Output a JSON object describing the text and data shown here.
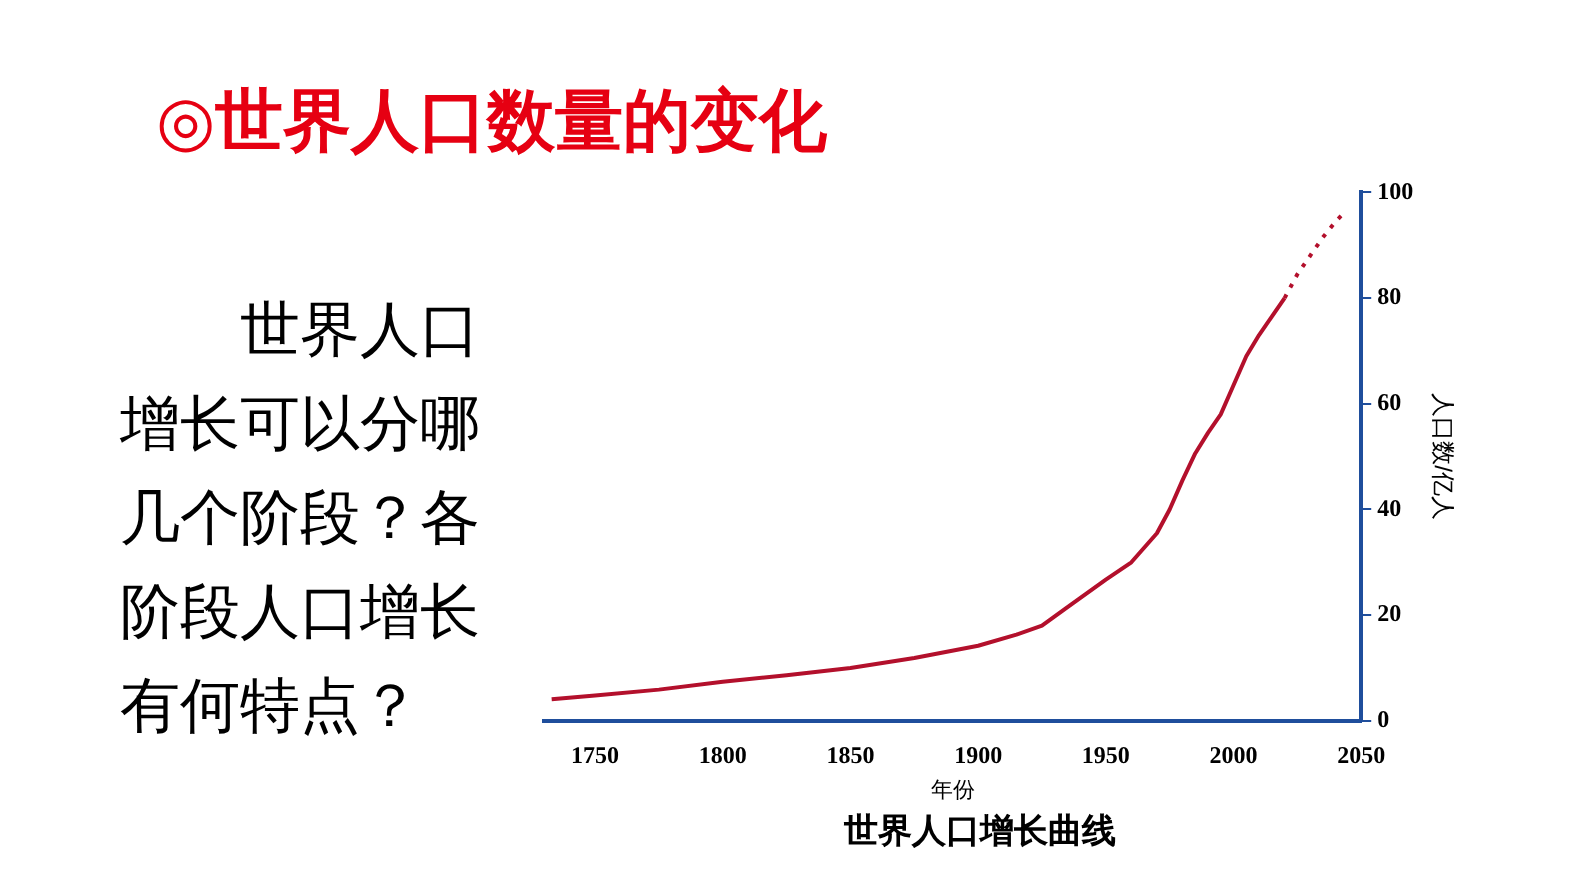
{
  "chart_data": {
    "type": "line",
    "title": "世界人口增长曲线",
    "xlabel": "年份",
    "ylabel": "人口数/亿人",
    "annotations": [
      "◎世界人口数量的变化",
      "世界人口增长可以分哪几个阶段？各阶段人口增长有何特点？"
    ],
    "series": [
      {
        "color": "#b3102c",
        "line_style": "solid",
        "x": [
          1733,
          1750,
          1775,
          1800,
          1825,
          1850,
          1875,
          1900,
          1915,
          1925,
          1935,
          1950,
          1960,
          1970,
          1975,
          1980,
          1985,
          1990,
          1995,
          2000,
          2005,
          2010,
          2015,
          2020
        ],
        "values": [
          4.1,
          4.8,
          5.9,
          7.4,
          8.6,
          10,
          11.9,
          14.2,
          16.3,
          18,
          21.5,
          26.7,
          30,
          35.5,
          40,
          45.5,
          50.6,
          54.5,
          58,
          63.5,
          69,
          73,
          76.5,
          80
        ]
      },
      {
        "color": "#b3102c",
        "line_style": "dotted",
        "x": [
          2020,
          2025,
          2030,
          2035,
          2040,
          2043
        ],
        "values": [
          80,
          84.5,
          88,
          91.5,
          94.5,
          96
        ]
      }
    ],
    "xlim": [
      1730,
      2050
    ],
    "xticks": [
      1750,
      1800,
      1850,
      1900,
      1950,
      2000,
      2050
    ],
    "ylim": [
      0,
      100
    ],
    "yticks": [
      0,
      20,
      40,
      60,
      80,
      100
    ],
    "grid": false,
    "legend": false,
    "marker": "none"
  }
}
